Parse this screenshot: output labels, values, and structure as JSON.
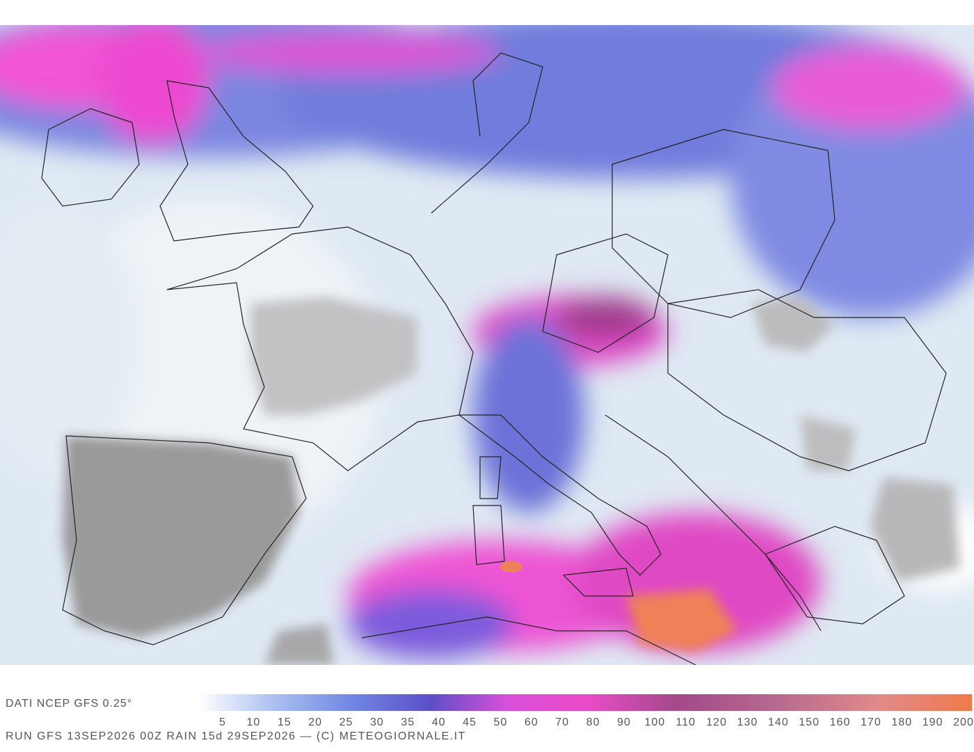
{
  "header": {
    "source": "DATI NCEP GFS 0.25°"
  },
  "colorbar": {
    "labels": [
      5,
      10,
      15,
      20,
      25,
      30,
      35,
      40,
      45,
      50,
      60,
      70,
      80,
      90,
      100,
      110,
      120,
      130,
      140,
      150,
      160,
      170,
      180,
      190,
      200
    ]
  },
  "footer": {
    "run": "RUN GFS 13SEP2026 00Z RAIN 15d 29SEP2026 — (C) METEOGIORNALE.IT"
  }
}
